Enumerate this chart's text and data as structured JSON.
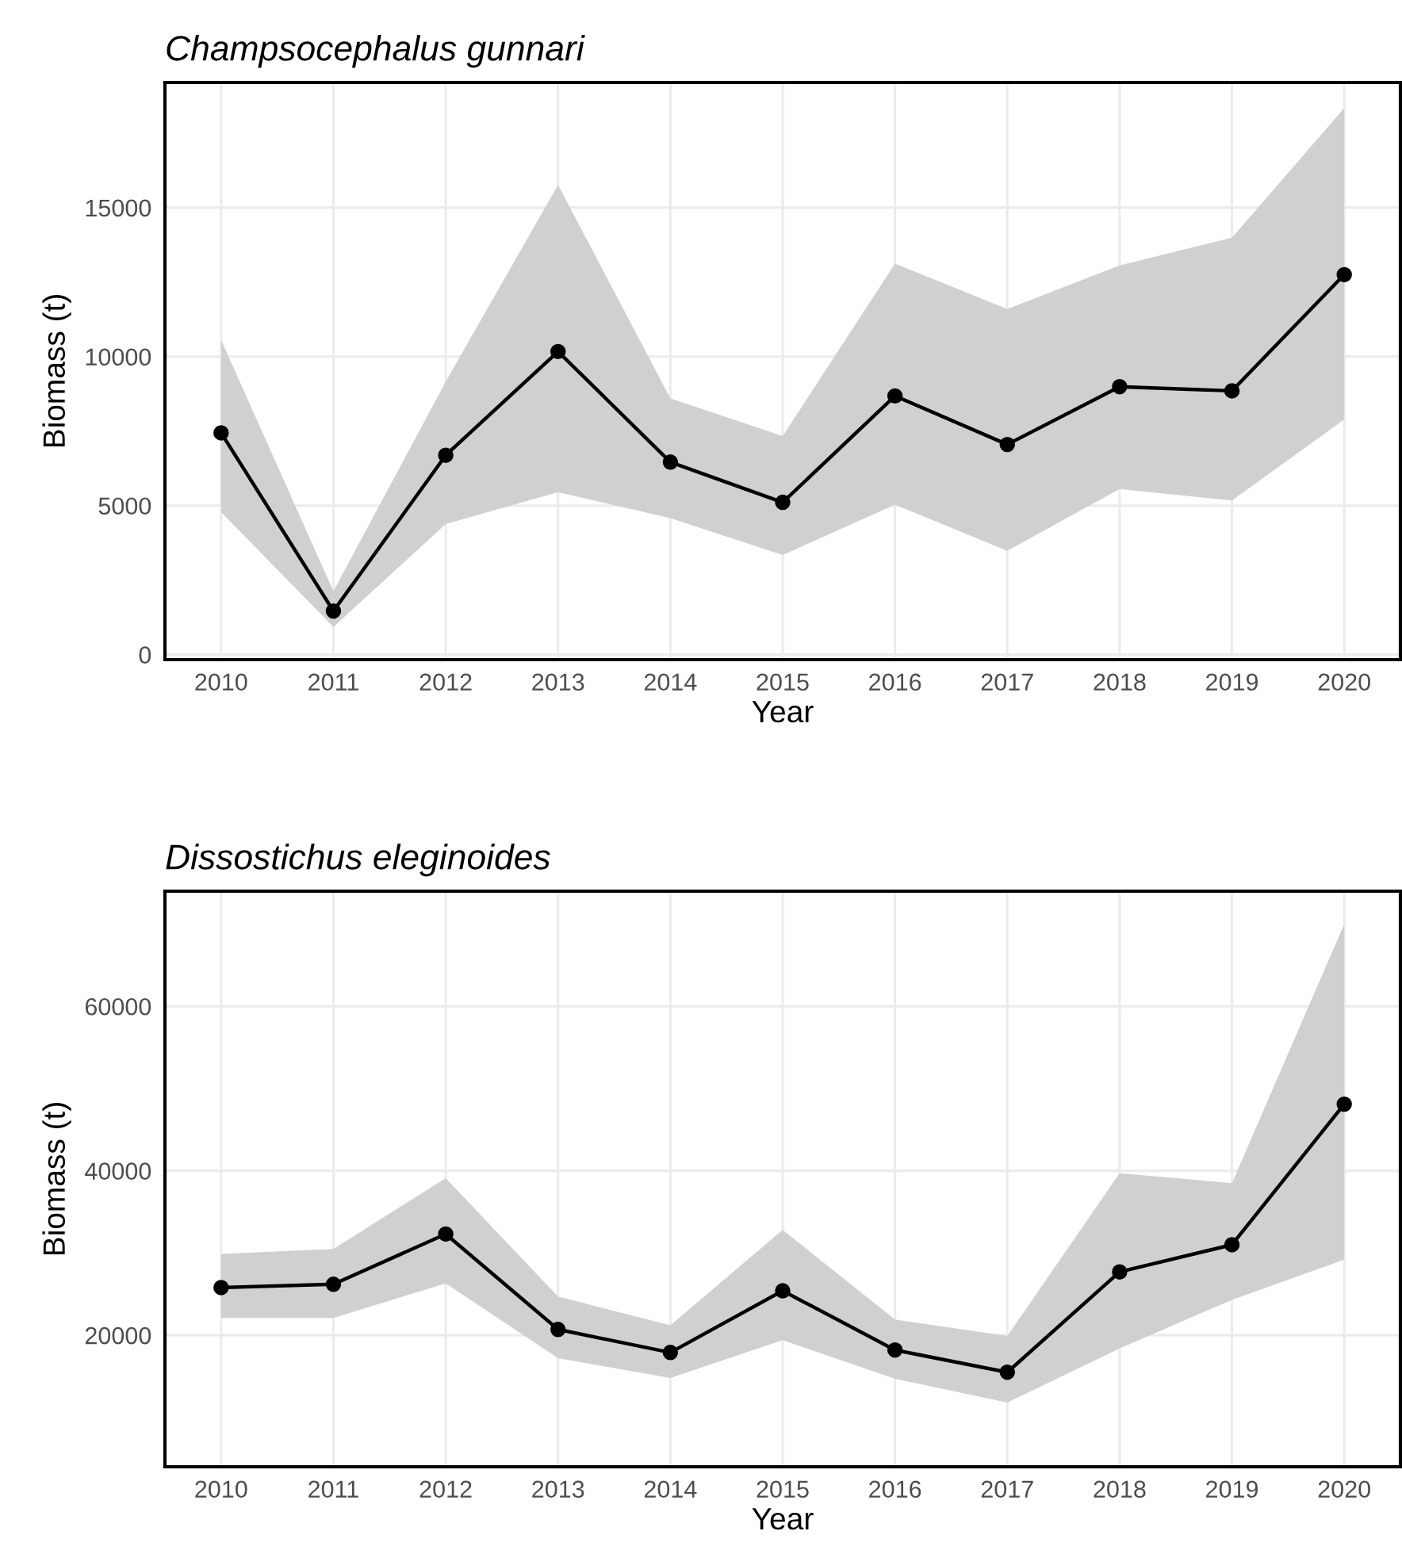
{
  "chart_data": [
    {
      "type": "line",
      "title": "Champsocephalus gunnari",
      "xlabel": "Year",
      "ylabel": "Biomass (t)",
      "x": [
        2010,
        2011,
        2012,
        2013,
        2014,
        2015,
        2016,
        2017,
        2018,
        2019,
        2020
      ],
      "series": [
        {
          "color": "#000000",
          "values": [
            7440,
            1460,
            6690,
            10170,
            6460,
            5110,
            8680,
            7050,
            8990,
            8850,
            12750
          ],
          "lower": [
            4780,
            930,
            4380,
            5450,
            4580,
            3340,
            5030,
            3480,
            5560,
            5170,
            7890
          ],
          "upper": [
            10560,
            2130,
            9160,
            15760,
            8600,
            7330,
            13120,
            11600,
            13060,
            13990,
            18340
          ]
        }
      ],
      "xlim": [
        2009.5,
        2020.5
      ],
      "xticks": [
        2010,
        2011,
        2012,
        2013,
        2014,
        2015,
        2016,
        2017,
        2018,
        2019,
        2020
      ],
      "ylim": [
        -170,
        19200
      ],
      "yticks": [
        0,
        5000,
        10000,
        15000
      ],
      "grid": true,
      "marker": "circle",
      "line_style": "solid"
    },
    {
      "type": "line",
      "title": "Dissostichus eleginoides",
      "xlabel": "Year",
      "ylabel": "Biomass (t)",
      "x": [
        2010,
        2011,
        2012,
        2013,
        2014,
        2015,
        2016,
        2017,
        2018,
        2019,
        2020
      ],
      "series": [
        {
          "color": "#000000",
          "values": [
            25800,
            26200,
            32300,
            20700,
            17900,
            25400,
            18200,
            15500,
            27700,
            31000,
            48100
          ],
          "lower": [
            22100,
            22100,
            26300,
            17200,
            14800,
            19400,
            14700,
            11800,
            18400,
            24300,
            29200
          ],
          "upper": [
            29900,
            30500,
            39100,
            24700,
            21200,
            32800,
            21900,
            19900,
            39700,
            38500,
            70000
          ]
        }
      ],
      "xlim": [
        2009.5,
        2020.5
      ],
      "xticks": [
        2010,
        2011,
        2012,
        2013,
        2014,
        2015,
        2016,
        2017,
        2018,
        2019,
        2020
      ],
      "ylim": [
        4000,
        74000
      ],
      "yticks": [
        20000,
        40000,
        60000
      ],
      "grid": true,
      "marker": "circle",
      "line_style": "solid"
    }
  ]
}
